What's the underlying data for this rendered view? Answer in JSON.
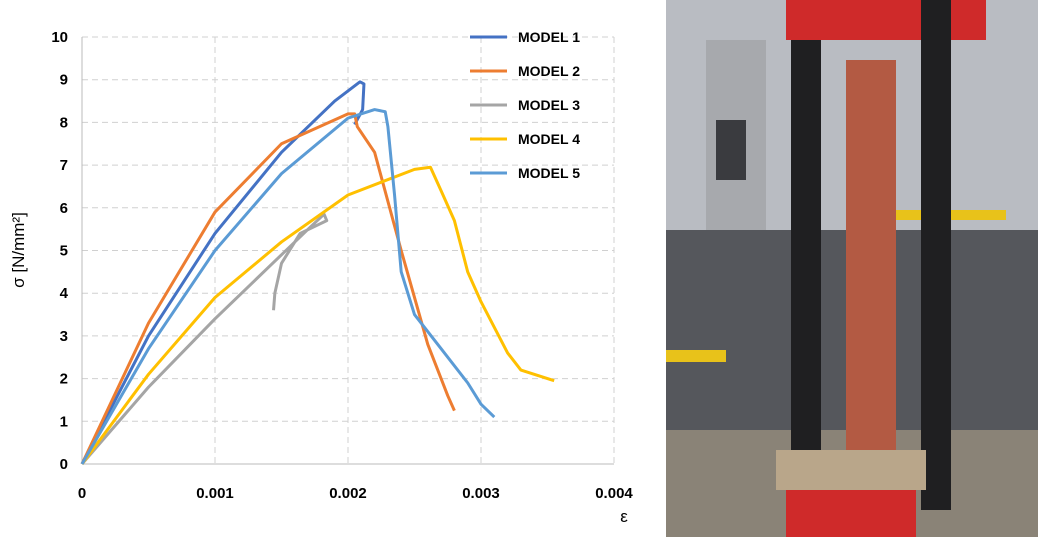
{
  "chart_data": {
    "type": "line",
    "x_label": "ε",
    "y_label": "σ [N/mm²]",
    "xlim": [
      0,
      0.004
    ],
    "xticks": [
      0,
      0.001,
      0.002,
      0.003,
      0.004
    ],
    "ylim": [
      0,
      10
    ],
    "yticks": [
      0,
      1,
      2,
      3,
      4,
      5,
      6,
      7,
      8,
      9,
      10
    ],
    "grid": true,
    "legend": "top-right",
    "series": [
      {
        "name": "MODEL 1",
        "color": "#4472c4",
        "x": [
          0,
          0.0005,
          0.001,
          0.0015,
          0.0019,
          0.00209,
          0.00212,
          0.00211,
          0.00205
        ],
        "values": [
          0,
          3.0,
          5.4,
          7.3,
          8.5,
          8.95,
          8.9,
          8.3,
          7.95
        ]
      },
      {
        "name": "MODEL 2",
        "color": "#ed7d31",
        "x": [
          0,
          0.0005,
          0.001,
          0.0015,
          0.002,
          0.00205,
          0.00207,
          0.0022,
          0.0024,
          0.0026,
          0.00275,
          0.0028
        ],
        "values": [
          0,
          3.3,
          5.9,
          7.5,
          8.2,
          8.2,
          7.9,
          7.3,
          5.0,
          2.8,
          1.6,
          1.25
        ]
      },
      {
        "name": "MODEL 3",
        "color": "#a5a5a5",
        "x": [
          0,
          0.0005,
          0.001,
          0.0014,
          0.0015,
          0.0017,
          0.00182,
          0.00184,
          0.00164,
          0.0015,
          0.00145,
          0.00144
        ],
        "values": [
          0,
          1.8,
          3.4,
          4.6,
          4.9,
          5.5,
          5.85,
          5.7,
          5.4,
          4.7,
          4.0,
          3.6
        ]
      },
      {
        "name": "MODEL 4",
        "color": "#ffc000",
        "x": [
          0,
          0.0005,
          0.001,
          0.0015,
          0.002,
          0.0025,
          0.00262,
          0.0027,
          0.0028,
          0.0029,
          0.003,
          0.0032,
          0.0033,
          0.0034,
          0.00355
        ],
        "values": [
          0,
          2.1,
          3.9,
          5.2,
          6.3,
          6.9,
          6.95,
          6.4,
          5.7,
          4.5,
          3.8,
          2.6,
          2.2,
          2.1,
          1.95
        ]
      },
      {
        "name": "MODEL 5",
        "color": "#5b9bd5",
        "x": [
          0,
          0.0005,
          0.001,
          0.0015,
          0.002,
          0.0022,
          0.00228,
          0.0023,
          0.00235,
          0.0024,
          0.0025,
          0.0027,
          0.0029,
          0.003,
          0.0031
        ],
        "values": [
          0,
          2.7,
          5.0,
          6.8,
          8.1,
          8.3,
          8.25,
          7.9,
          6.3,
          4.5,
          3.5,
          2.7,
          1.9,
          1.4,
          1.1
        ]
      }
    ]
  }
}
